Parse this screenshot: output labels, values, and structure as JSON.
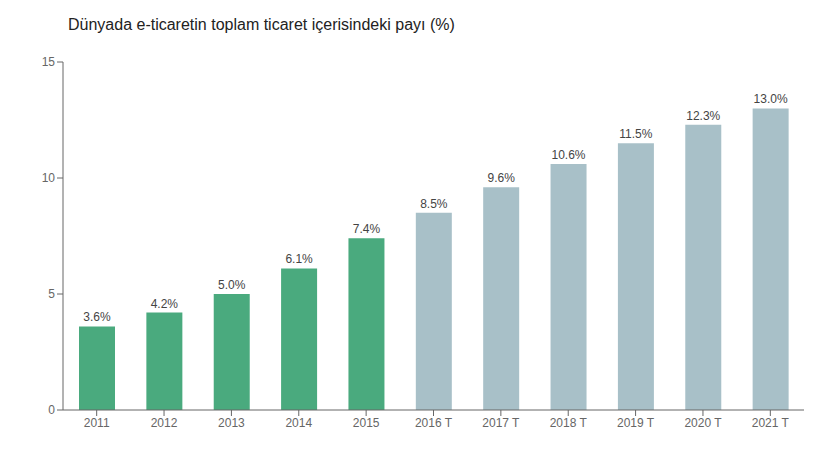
{
  "chart_data": {
    "type": "bar",
    "title": "Dünyada e-ticaretin toplam ticaret içerisindeki payı (%)",
    "categories": [
      "2011",
      "2012",
      "2013",
      "2014",
      "2015",
      "2016 T",
      "2017 T",
      "2018 T",
      "2019 T",
      "2020 T",
      "2021 T"
    ],
    "values": [
      3.6,
      4.2,
      5.0,
      6.1,
      7.4,
      8.5,
      9.6,
      10.6,
      11.5,
      12.3,
      13.0
    ],
    "value_labels": [
      "3.6%",
      "4.2%",
      "5.0%",
      "6.1%",
      "7.4%",
      "8.5%",
      "9.6%",
      "10.6%",
      "11.5%",
      "12.3%",
      "13.0%"
    ],
    "colors": [
      "#4aaa7e",
      "#4aaa7e",
      "#4aaa7e",
      "#4aaa7e",
      "#4aaa7e",
      "#a8c0c8",
      "#a8c0c8",
      "#a8c0c8",
      "#a8c0c8",
      "#a8c0c8",
      "#a8c0c8"
    ],
    "ylim": [
      0,
      15
    ],
    "yticks": [
      0,
      5,
      10,
      15
    ],
    "grid": false,
    "data_labels": true
  }
}
